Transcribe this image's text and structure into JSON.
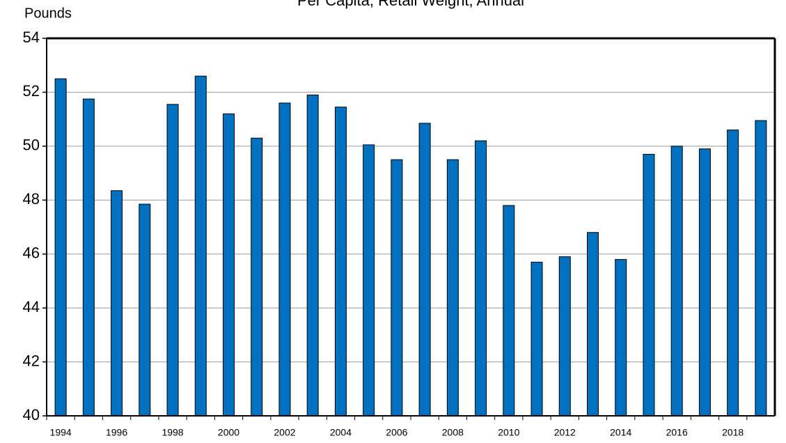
{
  "chart_data": {
    "type": "bar",
    "title": "Per Capita, Retail Weight, Annual",
    "y_label": "Pounds",
    "categories": [
      "1994",
      null,
      "1996",
      null,
      "1998",
      null,
      "2000",
      null,
      "2002",
      null,
      "2004",
      null,
      "2006",
      null,
      "2008",
      null,
      "2010",
      null,
      "2012",
      null,
      "2014",
      null,
      "2016",
      null,
      "2018",
      null
    ],
    "values": [
      52.5,
      51.75,
      48.35,
      47.85,
      51.55,
      52.6,
      51.2,
      50.3,
      51.6,
      51.9,
      51.45,
      50.05,
      49.5,
      50.85,
      49.5,
      50.2,
      47.8,
      45.7,
      45.9,
      46.8,
      45.8,
      49.7,
      50.0,
      49.9,
      50.6,
      50.95
    ],
    "color": "#0070c0",
    "ylim": [
      40,
      54
    ],
    "yticks": [
      40,
      42,
      44,
      46,
      48,
      50,
      52,
      54
    ],
    "grid": true
  }
}
